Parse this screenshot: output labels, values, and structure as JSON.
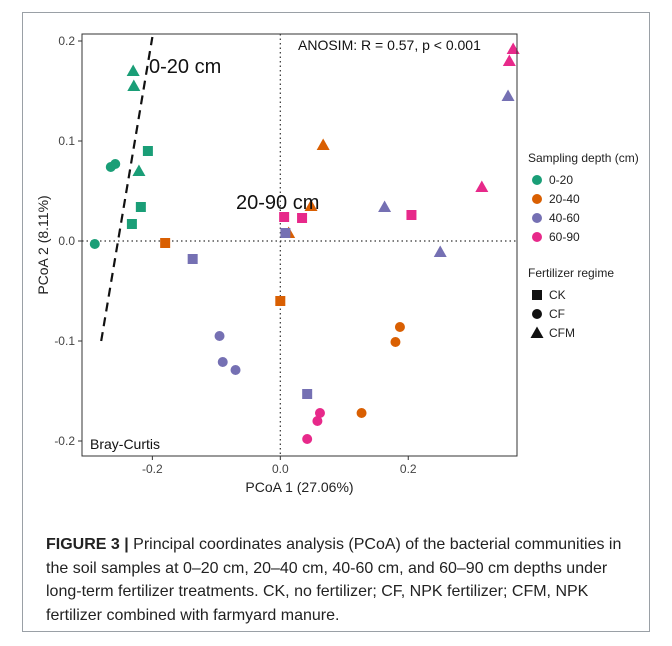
{
  "chart_data": {
    "type": "scatter",
    "xlabel": "PCoA 1 (27.06%)",
    "ylabel": "PCoA 2 (8.11%)",
    "xlim": [
      -0.31,
      0.37
    ],
    "ylim": [
      -0.215,
      0.207
    ],
    "xticks": [
      -0.2,
      0.0,
      0.2
    ],
    "xtick_labels": [
      "-0.2",
      "0.0",
      "0.2"
    ],
    "yticks": [
      -0.2,
      -0.1,
      0.0,
      0.1,
      0.2
    ],
    "ytick_labels": [
      "-0.2",
      "-0.1",
      "0.0",
      "0.1",
      "0.2"
    ],
    "grid": false,
    "reference_lines": {
      "x": 0,
      "y": 0,
      "style": "dotted"
    },
    "divider_line": {
      "x": [
        -0.28,
        -0.2
      ],
      "y": [
        -0.1,
        0.204
      ],
      "style": "dashed"
    },
    "annotations": [
      "ANOSIM: R = 0.57, p < 0.001",
      "0-20 cm",
      "20-90 cm",
      "Bray-Curtis"
    ],
    "legend_position": "right",
    "legend_depth_title": "Sampling depth (cm)",
    "legend_fert_title": "Fertilizer regime",
    "depth_groups": [
      {
        "name": "0-20",
        "color": "#1a9e77"
      },
      {
        "name": "20-40",
        "color": "#d95f02"
      },
      {
        "name": "40-60",
        "color": "#7570b3"
      },
      {
        "name": "60-90",
        "color": "#e7298a"
      }
    ],
    "fertilizer_groups": [
      {
        "name": "CK",
        "shape": "square"
      },
      {
        "name": "CF",
        "shape": "circle"
      },
      {
        "name": "CFM",
        "shape": "triangle"
      }
    ],
    "points": [
      {
        "x": -0.29,
        "y": -0.003,
        "depth": "0-20",
        "fert": "CF"
      },
      {
        "x": -0.265,
        "y": 0.074,
        "depth": "0-20",
        "fert": "CF"
      },
      {
        "x": -0.258,
        "y": 0.077,
        "depth": "0-20",
        "fert": "CF"
      },
      {
        "x": -0.232,
        "y": 0.017,
        "depth": "0-20",
        "fert": "CK"
      },
      {
        "x": -0.218,
        "y": 0.034,
        "depth": "0-20",
        "fert": "CK"
      },
      {
        "x": -0.207,
        "y": 0.09,
        "depth": "0-20",
        "fert": "CK"
      },
      {
        "x": -0.23,
        "y": 0.17,
        "depth": "0-20",
        "fert": "CFM"
      },
      {
        "x": -0.229,
        "y": 0.155,
        "depth": "0-20",
        "fert": "CFM"
      },
      {
        "x": -0.221,
        "y": 0.07,
        "depth": "0-20",
        "fert": "CFM"
      },
      {
        "x": -0.18,
        "y": -0.002,
        "depth": "20-40",
        "fert": "CK"
      },
      {
        "x": 0.0,
        "y": -0.06,
        "depth": "20-40",
        "fert": "CK"
      },
      {
        "x": 0.127,
        "y": -0.172,
        "depth": "20-40",
        "fert": "CF"
      },
      {
        "x": 0.18,
        "y": -0.101,
        "depth": "20-40",
        "fert": "CF"
      },
      {
        "x": 0.187,
        "y": -0.086,
        "depth": "20-40",
        "fert": "CF"
      },
      {
        "x": 0.067,
        "y": 0.096,
        "depth": "20-40",
        "fert": "CFM"
      },
      {
        "x": 0.048,
        "y": 0.035,
        "depth": "20-40",
        "fert": "CFM"
      },
      {
        "x": 0.013,
        "y": 0.008,
        "depth": "20-40",
        "fert": "CFM"
      },
      {
        "x": -0.137,
        "y": -0.018,
        "depth": "40-60",
        "fert": "CK"
      },
      {
        "x": 0.008,
        "y": 0.008,
        "depth": "40-60",
        "fert": "CK"
      },
      {
        "x": 0.042,
        "y": -0.153,
        "depth": "40-60",
        "fert": "CK"
      },
      {
        "x": -0.095,
        "y": -0.095,
        "depth": "40-60",
        "fert": "CF"
      },
      {
        "x": -0.09,
        "y": -0.121,
        "depth": "40-60",
        "fert": "CF"
      },
      {
        "x": -0.07,
        "y": -0.129,
        "depth": "40-60",
        "fert": "CF"
      },
      {
        "x": 0.163,
        "y": 0.034,
        "depth": "40-60",
        "fert": "CFM"
      },
      {
        "x": 0.25,
        "y": -0.011,
        "depth": "40-60",
        "fert": "CFM"
      },
      {
        "x": 0.356,
        "y": 0.145,
        "depth": "40-60",
        "fert": "CFM"
      },
      {
        "x": 0.006,
        "y": 0.024,
        "depth": "60-90",
        "fert": "CK"
      },
      {
        "x": 0.034,
        "y": 0.023,
        "depth": "60-90",
        "fert": "CK"
      },
      {
        "x": 0.205,
        "y": 0.026,
        "depth": "60-90",
        "fert": "CK"
      },
      {
        "x": 0.042,
        "y": -0.198,
        "depth": "60-90",
        "fert": "CF"
      },
      {
        "x": 0.058,
        "y": -0.18,
        "depth": "60-90",
        "fert": "CF"
      },
      {
        "x": 0.062,
        "y": -0.172,
        "depth": "60-90",
        "fert": "CF"
      },
      {
        "x": 0.315,
        "y": 0.054,
        "depth": "60-90",
        "fert": "CFM"
      },
      {
        "x": 0.358,
        "y": 0.18,
        "depth": "60-90",
        "fert": "CFM"
      },
      {
        "x": 0.364,
        "y": 0.192,
        "depth": "60-90",
        "fert": "CFM"
      }
    ]
  },
  "caption": {
    "label": "FIGURE 3 |",
    "text": " Principal coordinates analysis (PCoA) of the bacterial communities in the soil samples at 0–20 cm, 20–40 cm, 40-60 cm, and 60–90 cm depths under long-term fertilizer treatments. CK, no fertilizer; CF, NPK fertilizer; CFM, NPK fertilizer combined with farmyard manure."
  }
}
